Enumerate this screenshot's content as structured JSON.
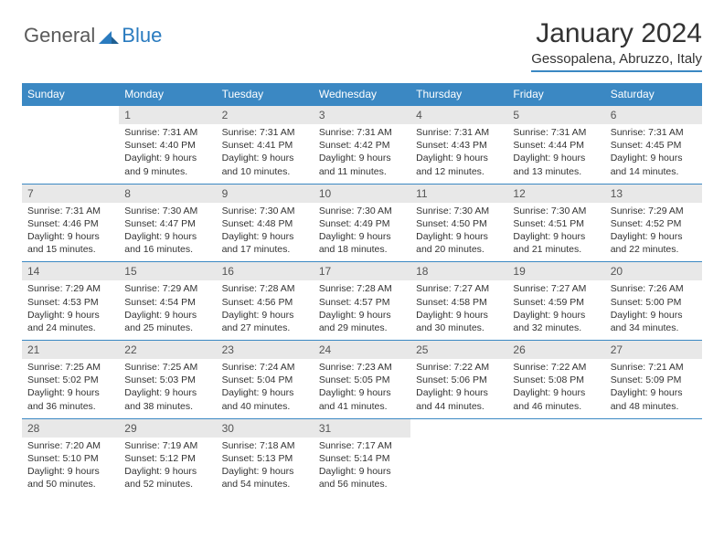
{
  "brand": {
    "part1": "General",
    "part2": "Blue"
  },
  "title": "January 2024",
  "location": "Gessopalena, Abruzzo, Italy",
  "day_headers": [
    "Sunday",
    "Monday",
    "Tuesday",
    "Wednesday",
    "Thursday",
    "Friday",
    "Saturday"
  ],
  "colors": {
    "accent": "#3b88c3",
    "header_bg": "#3b88c3",
    "date_bg": "#e8e8e8"
  },
  "weeks": [
    {
      "dates": [
        "",
        "1",
        "2",
        "3",
        "4",
        "5",
        "6"
      ],
      "cells": [
        {
          "empty": true
        },
        {
          "sunrise": "Sunrise: 7:31 AM",
          "sunset": "Sunset: 4:40 PM",
          "day1": "Daylight: 9 hours",
          "day2": "and 9 minutes."
        },
        {
          "sunrise": "Sunrise: 7:31 AM",
          "sunset": "Sunset: 4:41 PM",
          "day1": "Daylight: 9 hours",
          "day2": "and 10 minutes."
        },
        {
          "sunrise": "Sunrise: 7:31 AM",
          "sunset": "Sunset: 4:42 PM",
          "day1": "Daylight: 9 hours",
          "day2": "and 11 minutes."
        },
        {
          "sunrise": "Sunrise: 7:31 AM",
          "sunset": "Sunset: 4:43 PM",
          "day1": "Daylight: 9 hours",
          "day2": "and 12 minutes."
        },
        {
          "sunrise": "Sunrise: 7:31 AM",
          "sunset": "Sunset: 4:44 PM",
          "day1": "Daylight: 9 hours",
          "day2": "and 13 minutes."
        },
        {
          "sunrise": "Sunrise: 7:31 AM",
          "sunset": "Sunset: 4:45 PM",
          "day1": "Daylight: 9 hours",
          "day2": "and 14 minutes."
        }
      ]
    },
    {
      "dates": [
        "7",
        "8",
        "9",
        "10",
        "11",
        "12",
        "13"
      ],
      "cells": [
        {
          "sunrise": "Sunrise: 7:31 AM",
          "sunset": "Sunset: 4:46 PM",
          "day1": "Daylight: 9 hours",
          "day2": "and 15 minutes."
        },
        {
          "sunrise": "Sunrise: 7:30 AM",
          "sunset": "Sunset: 4:47 PM",
          "day1": "Daylight: 9 hours",
          "day2": "and 16 minutes."
        },
        {
          "sunrise": "Sunrise: 7:30 AM",
          "sunset": "Sunset: 4:48 PM",
          "day1": "Daylight: 9 hours",
          "day2": "and 17 minutes."
        },
        {
          "sunrise": "Sunrise: 7:30 AM",
          "sunset": "Sunset: 4:49 PM",
          "day1": "Daylight: 9 hours",
          "day2": "and 18 minutes."
        },
        {
          "sunrise": "Sunrise: 7:30 AM",
          "sunset": "Sunset: 4:50 PM",
          "day1": "Daylight: 9 hours",
          "day2": "and 20 minutes."
        },
        {
          "sunrise": "Sunrise: 7:30 AM",
          "sunset": "Sunset: 4:51 PM",
          "day1": "Daylight: 9 hours",
          "day2": "and 21 minutes."
        },
        {
          "sunrise": "Sunrise: 7:29 AM",
          "sunset": "Sunset: 4:52 PM",
          "day1": "Daylight: 9 hours",
          "day2": "and 22 minutes."
        }
      ]
    },
    {
      "dates": [
        "14",
        "15",
        "16",
        "17",
        "18",
        "19",
        "20"
      ],
      "cells": [
        {
          "sunrise": "Sunrise: 7:29 AM",
          "sunset": "Sunset: 4:53 PM",
          "day1": "Daylight: 9 hours",
          "day2": "and 24 minutes."
        },
        {
          "sunrise": "Sunrise: 7:29 AM",
          "sunset": "Sunset: 4:54 PM",
          "day1": "Daylight: 9 hours",
          "day2": "and 25 minutes."
        },
        {
          "sunrise": "Sunrise: 7:28 AM",
          "sunset": "Sunset: 4:56 PM",
          "day1": "Daylight: 9 hours",
          "day2": "and 27 minutes."
        },
        {
          "sunrise": "Sunrise: 7:28 AM",
          "sunset": "Sunset: 4:57 PM",
          "day1": "Daylight: 9 hours",
          "day2": "and 29 minutes."
        },
        {
          "sunrise": "Sunrise: 7:27 AM",
          "sunset": "Sunset: 4:58 PM",
          "day1": "Daylight: 9 hours",
          "day2": "and 30 minutes."
        },
        {
          "sunrise": "Sunrise: 7:27 AM",
          "sunset": "Sunset: 4:59 PM",
          "day1": "Daylight: 9 hours",
          "day2": "and 32 minutes."
        },
        {
          "sunrise": "Sunrise: 7:26 AM",
          "sunset": "Sunset: 5:00 PM",
          "day1": "Daylight: 9 hours",
          "day2": "and 34 minutes."
        }
      ]
    },
    {
      "dates": [
        "21",
        "22",
        "23",
        "24",
        "25",
        "26",
        "27"
      ],
      "cells": [
        {
          "sunrise": "Sunrise: 7:25 AM",
          "sunset": "Sunset: 5:02 PM",
          "day1": "Daylight: 9 hours",
          "day2": "and 36 minutes."
        },
        {
          "sunrise": "Sunrise: 7:25 AM",
          "sunset": "Sunset: 5:03 PM",
          "day1": "Daylight: 9 hours",
          "day2": "and 38 minutes."
        },
        {
          "sunrise": "Sunrise: 7:24 AM",
          "sunset": "Sunset: 5:04 PM",
          "day1": "Daylight: 9 hours",
          "day2": "and 40 minutes."
        },
        {
          "sunrise": "Sunrise: 7:23 AM",
          "sunset": "Sunset: 5:05 PM",
          "day1": "Daylight: 9 hours",
          "day2": "and 41 minutes."
        },
        {
          "sunrise": "Sunrise: 7:22 AM",
          "sunset": "Sunset: 5:06 PM",
          "day1": "Daylight: 9 hours",
          "day2": "and 44 minutes."
        },
        {
          "sunrise": "Sunrise: 7:22 AM",
          "sunset": "Sunset: 5:08 PM",
          "day1": "Daylight: 9 hours",
          "day2": "and 46 minutes."
        },
        {
          "sunrise": "Sunrise: 7:21 AM",
          "sunset": "Sunset: 5:09 PM",
          "day1": "Daylight: 9 hours",
          "day2": "and 48 minutes."
        }
      ]
    },
    {
      "dates": [
        "28",
        "29",
        "30",
        "31",
        "",
        "",
        ""
      ],
      "cells": [
        {
          "sunrise": "Sunrise: 7:20 AM",
          "sunset": "Sunset: 5:10 PM",
          "day1": "Daylight: 9 hours",
          "day2": "and 50 minutes."
        },
        {
          "sunrise": "Sunrise: 7:19 AM",
          "sunset": "Sunset: 5:12 PM",
          "day1": "Daylight: 9 hours",
          "day2": "and 52 minutes."
        },
        {
          "sunrise": "Sunrise: 7:18 AM",
          "sunset": "Sunset: 5:13 PM",
          "day1": "Daylight: 9 hours",
          "day2": "and 54 minutes."
        },
        {
          "sunrise": "Sunrise: 7:17 AM",
          "sunset": "Sunset: 5:14 PM",
          "day1": "Daylight: 9 hours",
          "day2": "and 56 minutes."
        },
        {
          "empty": true
        },
        {
          "empty": true
        },
        {
          "empty": true
        }
      ]
    }
  ]
}
